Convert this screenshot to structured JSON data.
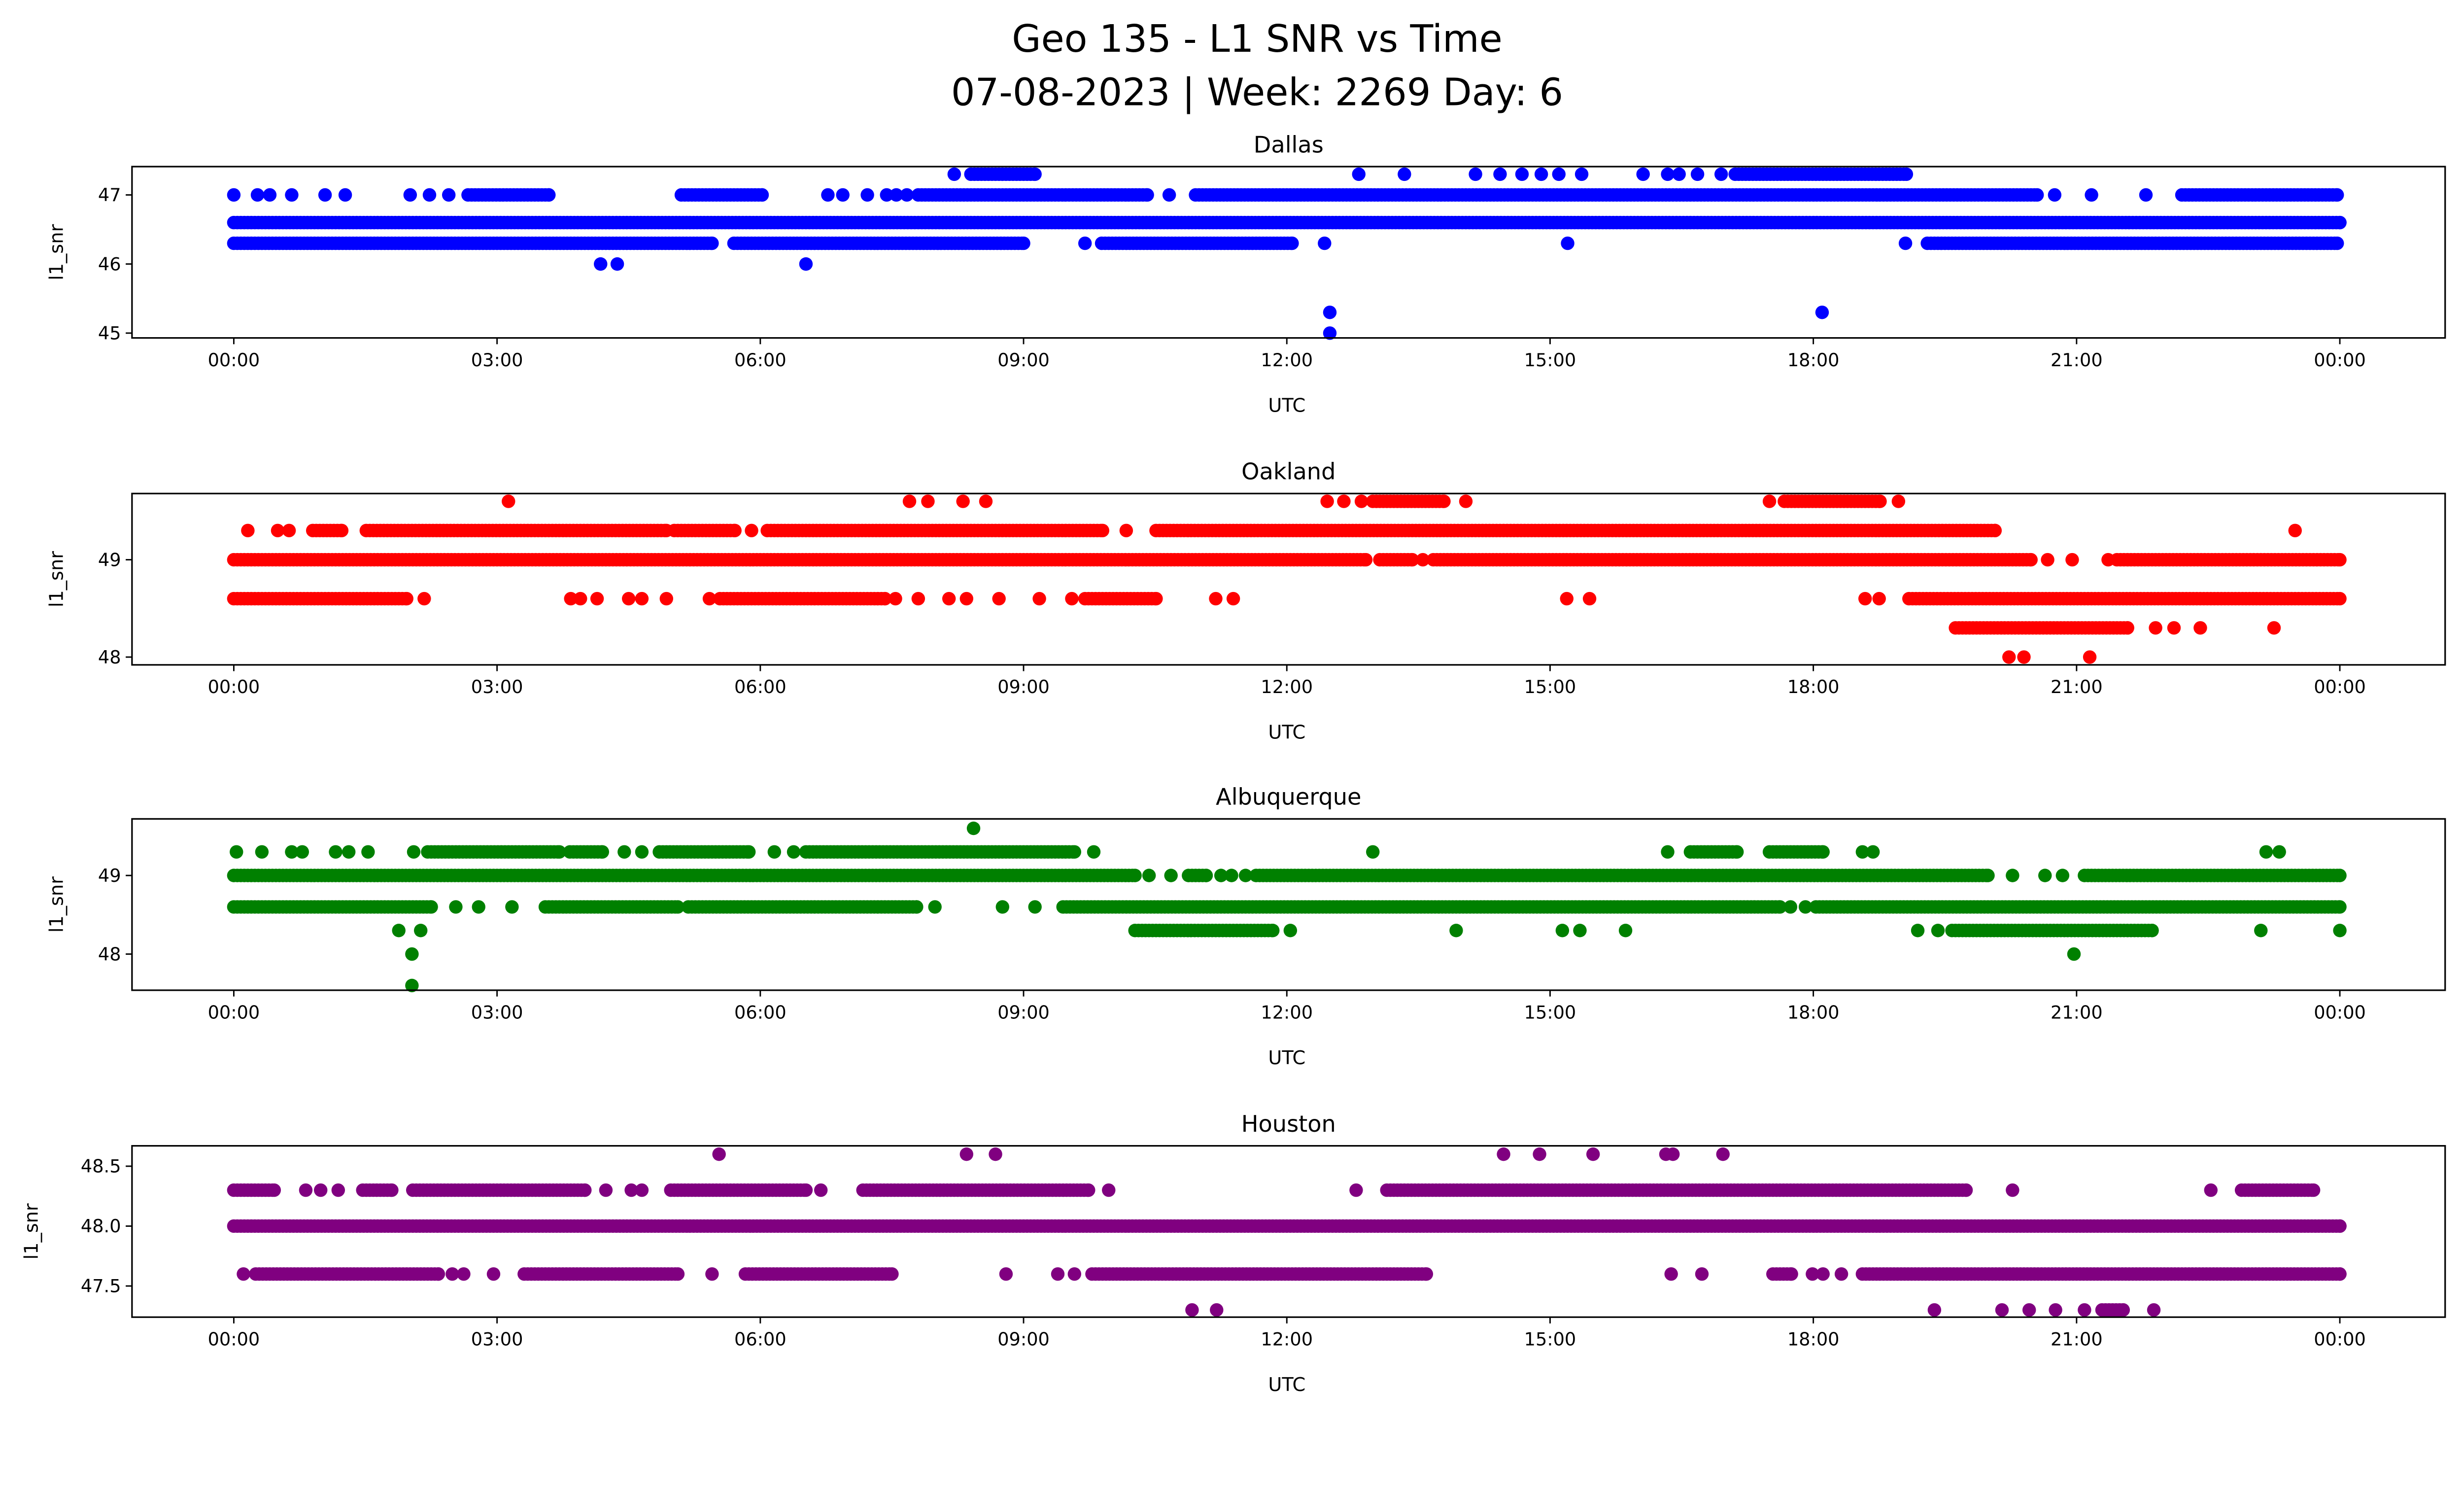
{
  "figure": {
    "title_line1": "Geo 135 - L1 SNR vs Time",
    "title_line2": "07-08-2023 | Week: 2269 Day: 6"
  },
  "chart_data": [
    {
      "type": "scatter",
      "title": "Dallas",
      "xlabel": "UTC",
      "ylabel": "l1_snr",
      "color": "#0000ff",
      "xlim_hours": [
        -1.16,
        25.2
      ],
      "ylim": [
        44.93,
        47.41
      ],
      "xticks": [
        0,
        3,
        6,
        9,
        12,
        15,
        18,
        21,
        24
      ],
      "xtick_labels": [
        "00:00",
        "03:00",
        "06:00",
        "09:00",
        "12:00",
        "15:00",
        "18:00",
        "21:00",
        "00:00"
      ],
      "yticks": [
        45,
        46,
        47
      ],
      "ytick_labels": [
        "45",
        "46",
        "47"
      ],
      "levels": [
        {
          "y": 47.3,
          "runs": [
            [
              8.4,
              9.13
            ],
            [
              17.11,
              19.06
            ]
          ],
          "points": [
            8.21,
            12.82,
            13.34,
            14.15,
            14.43,
            14.68,
            14.9,
            15.1,
            15.36,
            16.06,
            16.34,
            16.47,
            16.68,
            16.95
          ]
        },
        {
          "y": 47.0,
          "runs": [
            [
              2.67,
              3.59
            ],
            [
              5.1,
              6.02
            ],
            [
              7.8,
              10.41
            ],
            [
              10.96,
              20.55
            ],
            [
              22.2,
              23.97
            ]
          ],
          "points": [
            0,
            0.27,
            0.41,
            0.66,
            1.04,
            1.27,
            2.01,
            2.23,
            2.45,
            6.77,
            6.94,
            7.22,
            7.44,
            7.55,
            7.67,
            10.66,
            20.75,
            21.17,
            21.79
          ]
        },
        {
          "y": 46.6,
          "runs": [
            [
              0,
              24
            ]
          ],
          "points": []
        },
        {
          "y": 46.3,
          "runs": [
            [
              0,
              5.45
            ],
            [
              5.7,
              9.0
            ],
            [
              9.89,
              12.06
            ],
            [
              19.3,
              23.97
            ]
          ],
          "points": [
            9.7,
            12.43,
            15.2,
            19.05
          ]
        },
        {
          "y": 46.0,
          "runs": [],
          "points": [
            4.18,
            4.37,
            6.52
          ]
        },
        {
          "y": 45.3,
          "runs": [],
          "points": [
            12.49,
            18.1
          ]
        },
        {
          "y": 45.0,
          "runs": [],
          "points": [
            12.49
          ]
        }
      ]
    },
    {
      "type": "scatter",
      "title": "Oakland",
      "xlabel": "UTC",
      "ylabel": "l1_snr",
      "color": "#ff0000",
      "xlim_hours": [
        -1.16,
        25.2
      ],
      "ylim": [
        47.92,
        49.68
      ],
      "xticks": [
        0,
        3,
        6,
        9,
        12,
        15,
        18,
        21,
        24
      ],
      "xtick_labels": [
        "00:00",
        "03:00",
        "06:00",
        "09:00",
        "12:00",
        "15:00",
        "18:00",
        "21:00",
        "00:00"
      ],
      "yticks": [
        48,
        49
      ],
      "ytick_labels": [
        "48",
        "49"
      ],
      "levels": [
        {
          "y": 49.6,
          "runs": [
            [
              12.98,
              13.79
            ],
            [
              17.67,
              18.76
            ]
          ],
          "points": [
            3.13,
            7.7,
            7.91,
            8.31,
            8.57,
            12.46,
            12.65,
            12.85,
            14.04,
            17.5,
            18.97
          ]
        },
        {
          "y": 49.3,
          "runs": [
            [
              0.9,
              1.23
            ],
            [
              1.51,
              4.93
            ],
            [
              5.02,
              5.71
            ],
            [
              6.08,
              9.9
            ],
            [
              10.51,
              20.07
            ]
          ],
          "points": [
            0.16,
            0.5,
            0.63,
            5.9,
            10.17,
            23.49
          ]
        },
        {
          "y": 49.0,
          "runs": [
            [
              0,
              12.9
            ],
            [
              13.06,
              13.43
            ],
            [
              13.67,
              20.48
            ],
            [
              21.46,
              24
            ]
          ],
          "points": [
            13.55,
            20.67,
            20.95,
            21.36
          ]
        },
        {
          "y": 48.6,
          "runs": [
            [
              0,
              1.97
            ],
            [
              5.54,
              7.42
            ],
            [
              9.7,
              10.51
            ],
            [
              19.09,
              24
            ]
          ],
          "points": [
            2.17,
            3.84,
            3.95,
            4.14,
            4.5,
            4.65,
            4.93,
            5.42,
            7.54,
            7.8,
            8.15,
            8.35,
            8.72,
            9.18,
            9.55,
            11.19,
            11.39,
            15.19,
            15.45,
            18.59,
            18.75
          ]
        },
        {
          "y": 48.3,
          "runs": [
            [
              19.62,
              21.58
            ]
          ],
          "points": [
            21.9,
            22.11,
            22.41,
            23.25
          ]
        },
        {
          "y": 48.0,
          "runs": [],
          "points": [
            20.23,
            20.4,
            21.15
          ]
        }
      ]
    },
    {
      "type": "scatter",
      "title": "Albuquerque",
      "xlabel": "UTC",
      "ylabel": "l1_snr",
      "color": "#008000",
      "xlim_hours": [
        -1.16,
        25.2
      ],
      "ylim": [
        47.54,
        49.72
      ],
      "xticks": [
        0,
        3,
        6,
        9,
        12,
        15,
        18,
        21,
        24
      ],
      "xtick_labels": [
        "00:00",
        "03:00",
        "06:00",
        "09:00",
        "12:00",
        "15:00",
        "18:00",
        "21:00",
        "00:00"
      ],
      "yticks": [
        48,
        49
      ],
      "ytick_labels": [
        "48",
        "49"
      ],
      "levels": [
        {
          "y": 49.6,
          "runs": [],
          "points": [
            8.43
          ]
        },
        {
          "y": 49.3,
          "runs": [
            [
              2.21,
              3.71
            ],
            [
              3.83,
              4.2
            ],
            [
              4.85,
              5.87
            ],
            [
              6.52,
              9.58
            ],
            [
              16.6,
              17.13
            ],
            [
              17.5,
              18.11
            ]
          ],
          "points": [
            0.03,
            0.32,
            0.66,
            0.78,
            1.16,
            1.31,
            1.53,
            2.05,
            4.45,
            4.65,
            6.16,
            6.38,
            9.8,
            12.98,
            16.34,
            18.56,
            18.68,
            23.16,
            23.31
          ]
        },
        {
          "y": 49.0,
          "runs": [
            [
              0,
              10.27
            ],
            [
              10.88,
              11.08
            ],
            [
              11.65,
              19.99
            ],
            [
              21.09,
              24
            ]
          ],
          "points": [
            10.43,
            10.68,
            11.25,
            11.37,
            11.53,
            20.27,
            20.64,
            20.84
          ]
        },
        {
          "y": 48.6,
          "runs": [
            [
              0,
              2.25
            ],
            [
              3.55,
              5.06
            ],
            [
              5.18,
              7.78
            ],
            [
              9.45,
              17.62
            ],
            [
              18.03,
              24
            ]
          ],
          "points": [
            2.53,
            2.79,
            3.17,
            7.99,
            8.76,
            9.13,
            17.74,
            17.91
          ]
        },
        {
          "y": 48.3,
          "runs": [
            [
              10.27,
              11.84
            ],
            [
              19.58,
              21.86
            ]
          ],
          "points": [
            1.88,
            2.13,
            12.04,
            13.93,
            15.14,
            15.34,
            15.86,
            19.19,
            19.42,
            23.1,
            24.0
          ]
        },
        {
          "y": 48.0,
          "runs": [],
          "points": [
            2.03,
            20.97
          ]
        },
        {
          "y": 47.6,
          "runs": [],
          "points": [
            2.03
          ]
        }
      ]
    },
    {
      "type": "scatter",
      "title": "Houston",
      "xlabel": "UTC",
      "ylabel": "l1_snr",
      "color": "#800080",
      "xlim_hours": [
        -1.16,
        25.2
      ],
      "ylim": [
        47.24,
        48.67
      ],
      "xticks": [
        0,
        3,
        6,
        9,
        12,
        15,
        18,
        21,
        24
      ],
      "xtick_labels": [
        "00:00",
        "03:00",
        "06:00",
        "09:00",
        "12:00",
        "15:00",
        "18:00",
        "21:00",
        "00:00"
      ],
      "yticks": [
        47.5,
        48.0,
        48.5
      ],
      "ytick_labels": [
        "47.5",
        "48.0",
        "48.5"
      ],
      "levels": [
        {
          "y": 48.6,
          "runs": [],
          "points": [
            5.53,
            8.35,
            8.68,
            14.47,
            14.88,
            15.49,
            16.32,
            16.4,
            16.97
          ]
        },
        {
          "y": 48.3,
          "runs": [
            [
              0,
              0.46
            ],
            [
              1.47,
              1.8
            ],
            [
              2.04,
              4.0
            ],
            [
              4.98,
              6.52
            ],
            [
              7.17,
              9.74
            ],
            [
              13.14,
              19.74
            ],
            [
              22.88,
              23.7
            ]
          ],
          "points": [
            0.82,
            0.99,
            1.19,
            4.24,
            4.53,
            4.65,
            6.69,
            9.97,
            12.79,
            20.27,
            22.53
          ]
        },
        {
          "y": 48.0,
          "runs": [
            [
              0,
              24
            ]
          ],
          "points": []
        },
        {
          "y": 47.6,
          "runs": [
            [
              0.25,
              2.33
            ],
            [
              3.31,
              5.06
            ],
            [
              5.83,
              7.5
            ],
            [
              9.78,
              13.59
            ],
            [
              17.54,
              17.75
            ],
            [
              18.56,
              24
            ]
          ],
          "points": [
            0.11,
            2.49,
            2.62,
            2.96,
            5.45,
            8.8,
            9.39,
            9.58,
            16.38,
            16.73,
            17.99,
            18.11,
            18.32
          ]
        },
        {
          "y": 47.3,
          "runs": [
            [
              21.29,
              21.53
            ]
          ],
          "points": [
            10.92,
            11.2,
            19.38,
            20.15,
            20.46,
            20.76,
            21.09,
            21.88
          ]
        }
      ]
    }
  ]
}
